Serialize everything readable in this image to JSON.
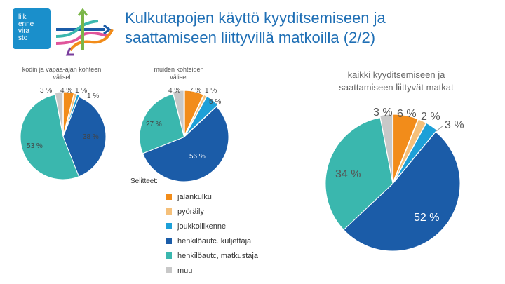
{
  "header": {
    "title_line1": "Kulkutapojen käyttö kyyditsemiseen ja",
    "title_line2": "saattamiseen liittyvillä matkoilla (2/2)"
  },
  "logo": {
    "line1": "liik",
    "line2": "enne",
    "line3": "vira",
    "line4": "sto"
  },
  "colors": {
    "jalankulku": "#f28c1a",
    "pyoraily": "#f5c07a",
    "joukkoliikenne": "#1da0d8",
    "kuljettaja": "#1b5ca8",
    "matkustaja": "#3ab7ae",
    "muu": "#c8c8c8"
  },
  "legend": {
    "title": "Selitteet:",
    "items": [
      {
        "label": "jalankulku",
        "color": "#f28c1a"
      },
      {
        "label": "pyöräily",
        "color": "#f5c07a"
      },
      {
        "label": "joukkoliikenne",
        "color": "#1da0d8"
      },
      {
        "label": "henkilöautc. kuljettaja",
        "color": "#1b5ca8"
      },
      {
        "label": "henkilöautc, matkustaja",
        "color": "#3ab7ae"
      },
      {
        "label": "muu",
        "color": "#c8c8c8"
      }
    ]
  },
  "chart_data": [
    {
      "type": "pie",
      "title": "kodin ja vapaa-ajan kohteen välisel",
      "series": [
        {
          "category": "jalankulku",
          "value": 4
        },
        {
          "category": "pyöräily",
          "value": 1
        },
        {
          "category": "joukkoliikenne",
          "value": 1
        },
        {
          "category": "henkilöautc. kuljettaja",
          "value": 38
        },
        {
          "category": "henkilöautc, matkustaja",
          "value": 53
        },
        {
          "category": "muu",
          "value": 3
        }
      ],
      "labels": [
        "4 %",
        "1 %",
        "1 %",
        "38 %",
        "53 %",
        "3 %"
      ]
    },
    {
      "type": "pie",
      "title": "muiden kohteiden väliset",
      "series": [
        {
          "category": "jalankulku",
          "value": 7
        },
        {
          "category": "pyöräily",
          "value": 1
        },
        {
          "category": "joukkoliikenne",
          "value": 5
        },
        {
          "category": "henkilöautc. kuljettaja",
          "value": 56
        },
        {
          "category": "henkilöautc, matkustaja",
          "value": 27
        },
        {
          "category": "muu",
          "value": 4
        }
      ],
      "labels": [
        "7 %",
        "1 %",
        "5 %",
        "56 %",
        "27 %",
        "4 %"
      ]
    },
    {
      "type": "pie",
      "title": "kaikki kyyditsemiseen ja saattamiseen liittyvät matkat",
      "series": [
        {
          "category": "jalankulku",
          "value": 6
        },
        {
          "category": "pyöräily",
          "value": 2
        },
        {
          "category": "joukkoliikenne",
          "value": 3
        },
        {
          "category": "henkilöautc. kuljettaja",
          "value": 52
        },
        {
          "category": "henkilöautc, matkustaja",
          "value": 34
        },
        {
          "category": "muu",
          "value": 3
        }
      ],
      "labels": [
        "6 %",
        "2 %",
        "3 %",
        "52 %",
        "34 %",
        "3 %"
      ]
    }
  ],
  "chart_titles": {
    "c1_line1": "kodin ja vapaa-ajan kohteen",
    "c1_line2": "välisel",
    "c2_line1": "muiden kohteiden",
    "c2_line2": "väliset",
    "c3_line1": "kaikki kyyditsemiseen ja",
    "c3_line2": "saattamiseen liittyvät matkat"
  }
}
